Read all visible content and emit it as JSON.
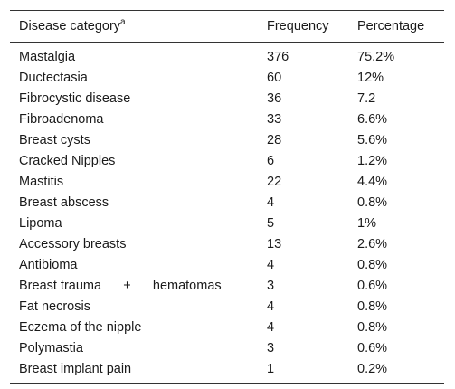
{
  "table": {
    "headers": {
      "disease_category": "Disease category",
      "disease_category_sup": "a",
      "frequency": "Frequency",
      "percentage": "Percentage"
    },
    "rows": [
      {
        "category": "Mastalgia",
        "frequency": "376",
        "percentage": "75.2%"
      },
      {
        "category": "Ductectasia",
        "frequency": "60",
        "percentage": "12%"
      },
      {
        "category": "Fibrocystic disease",
        "frequency": "36",
        "percentage": "7.2"
      },
      {
        "category": "Fibroadenoma",
        "frequency": "33",
        "percentage": "6.6%"
      },
      {
        "category": "Breast cysts",
        "frequency": "28",
        "percentage": "5.6%"
      },
      {
        "category": "Cracked Nipples",
        "frequency": "6",
        "percentage": "1.2%"
      },
      {
        "category": "Mastitis",
        "frequency": "22",
        "percentage": "4.4%"
      },
      {
        "category": "Breast abscess",
        "frequency": "4",
        "percentage": "0.8%"
      },
      {
        "category": "Lipoma",
        "frequency": "5",
        "percentage": "1%"
      },
      {
        "category": "Accessory breasts",
        "frequency": "13",
        "percentage": "2.6%"
      },
      {
        "category": "Antibioma",
        "frequency": "4",
        "percentage": "0.8%"
      },
      {
        "category": "Breast trauma      +      hematomas",
        "frequency": "3",
        "percentage": "0.6%"
      },
      {
        "category": "Fat necrosis",
        "frequency": "4",
        "percentage": "0.8%"
      },
      {
        "category": "Eczema of the nipple",
        "frequency": "4",
        "percentage": "0.8%"
      },
      {
        "category": "Polymastia",
        "frequency": "3",
        "percentage": "0.6%"
      },
      {
        "category": "Breast implant pain",
        "frequency": "1",
        "percentage": "0.2%"
      }
    ]
  }
}
